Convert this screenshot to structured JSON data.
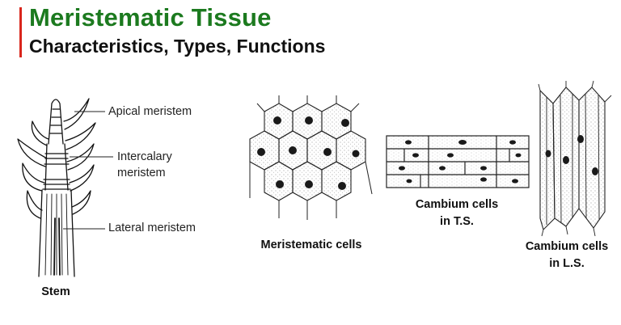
{
  "header": {
    "title": "Meristematic Tissue",
    "subtitle": "Characteristics, Types, Functions",
    "accent_color": "#d9261c",
    "title_color": "#1c7a1f"
  },
  "stem_diagram": {
    "labels": {
      "apical": "Apical meristem",
      "intercalary_line1": "Intercalary",
      "intercalary_line2": "meristem",
      "lateral": "Lateral meristem"
    },
    "caption": "Stem"
  },
  "captions": {
    "meristematic": "Meristematic cells",
    "cambium_ts_line1": "Cambium cells",
    "cambium_ts_line2": "in T.S.",
    "cambium_ls_line1": "Cambium cells",
    "cambium_ls_line2": "in L.S."
  }
}
